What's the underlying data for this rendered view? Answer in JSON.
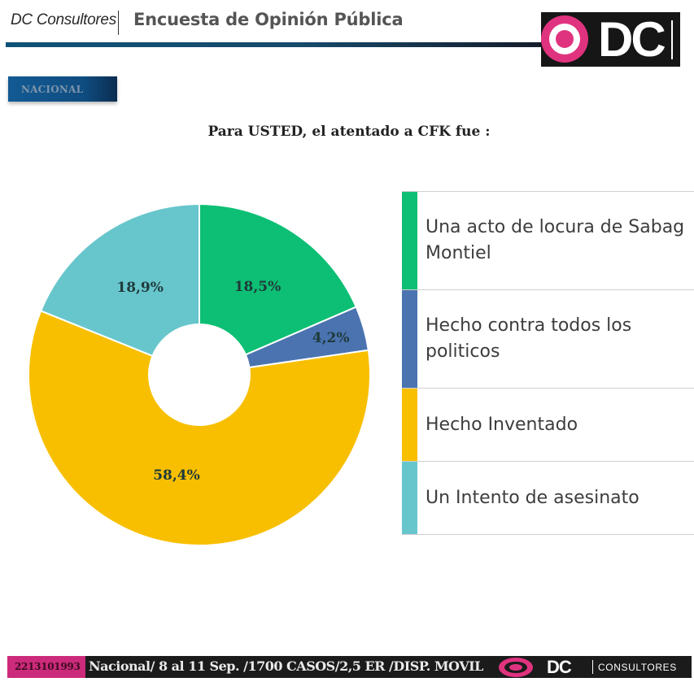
{
  "header": {
    "brand": "DC Consultores",
    "title": "Encuesta de Opinión Pública",
    "logo_text": "DC"
  },
  "scope_badge": "NACIONAL",
  "question": "Para USTED, el atentado a CFK fue :",
  "chart_data": {
    "type": "pie",
    "variant": "donut",
    "title": "Para USTED, el atentado a CFK fue :",
    "start_angle": "12 o'clock",
    "direction": "clockwise",
    "legend_position": "right",
    "slices": [
      {
        "label": "Una acto de locura de Sabag Montiel",
        "value": 18.5,
        "display": "18,5%",
        "color": "#0dbf74"
      },
      {
        "label": "Hecho contra todos los politicos",
        "value": 4.2,
        "display": "4,2%",
        "color": "#4a73b0"
      },
      {
        "label": "Hecho Inventado",
        "value": 58.4,
        "display": "58,4%",
        "color": "#f8bf00"
      },
      {
        "label": "Un Intento de asesinato",
        "value": 18.9,
        "display": "18,9%",
        "color": "#67c6cc"
      }
    ]
  },
  "footer": {
    "phone": "2213101993",
    "info": "Nacional/ 8 al 11 Sep. /1700 CASOS/2,5 ER /DISP. MOVIL",
    "brand_dc": "DC",
    "brand_consultores": "CONSULTORES"
  }
}
